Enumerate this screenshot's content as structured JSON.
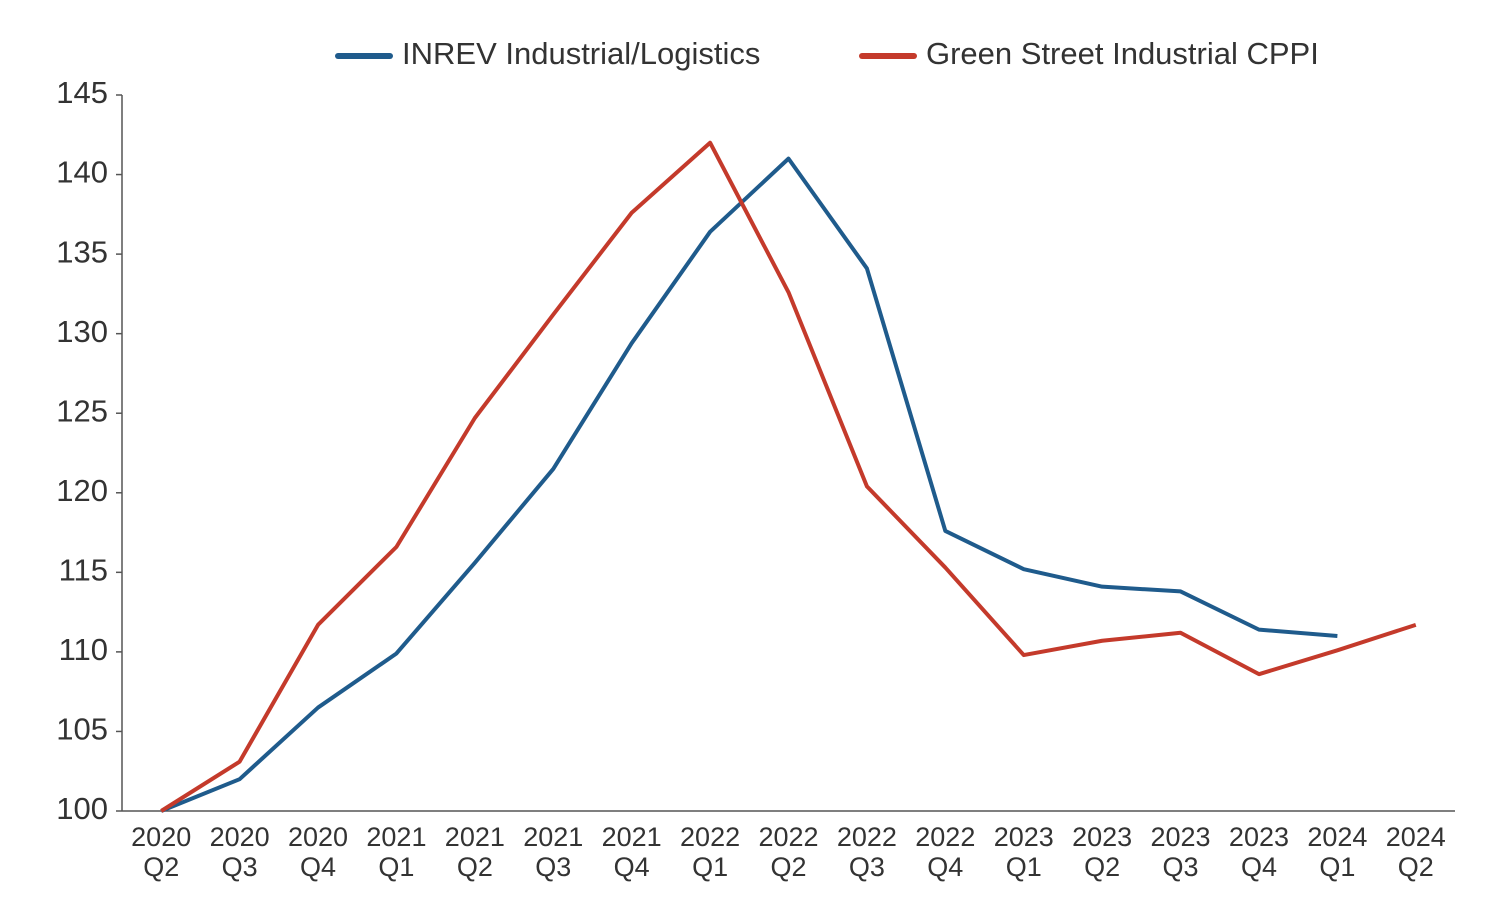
{
  "chart_data": {
    "type": "line",
    "categories": [
      "2020 Q2",
      "2020 Q3",
      "2020 Q4",
      "2021 Q1",
      "2021 Q2",
      "2021 Q3",
      "2021 Q4",
      "2022 Q1",
      "2022 Q2",
      "2022 Q3",
      "2022 Q4",
      "2023 Q1",
      "2023 Q2",
      "2023 Q3",
      "2023 Q4",
      "2024 Q1",
      "2024 Q2"
    ],
    "series": [
      {
        "name": "INREV Industrial/Logistics",
        "color": "#1f5b8c",
        "values": [
          100,
          102,
          106.5,
          109.9,
          115.6,
          121.5,
          129.4,
          136.4,
          141,
          134.1,
          117.6,
          115.2,
          114.1,
          113.8,
          111.4,
          111,
          null
        ]
      },
      {
        "name": "Green Street Industrial CPPI",
        "color": "#c43a2b",
        "values": [
          100,
          103.1,
          111.7,
          116.6,
          124.7,
          131.2,
          137.6,
          142,
          132.6,
          120.4,
          115.3,
          109.8,
          110.7,
          111.2,
          108.6,
          110.1,
          111.7
        ]
      }
    ],
    "ylim": [
      100,
      145
    ],
    "yticks": [
      100,
      105,
      110,
      115,
      120,
      125,
      130,
      135,
      140,
      145
    ],
    "grid": false,
    "legend": "top"
  }
}
